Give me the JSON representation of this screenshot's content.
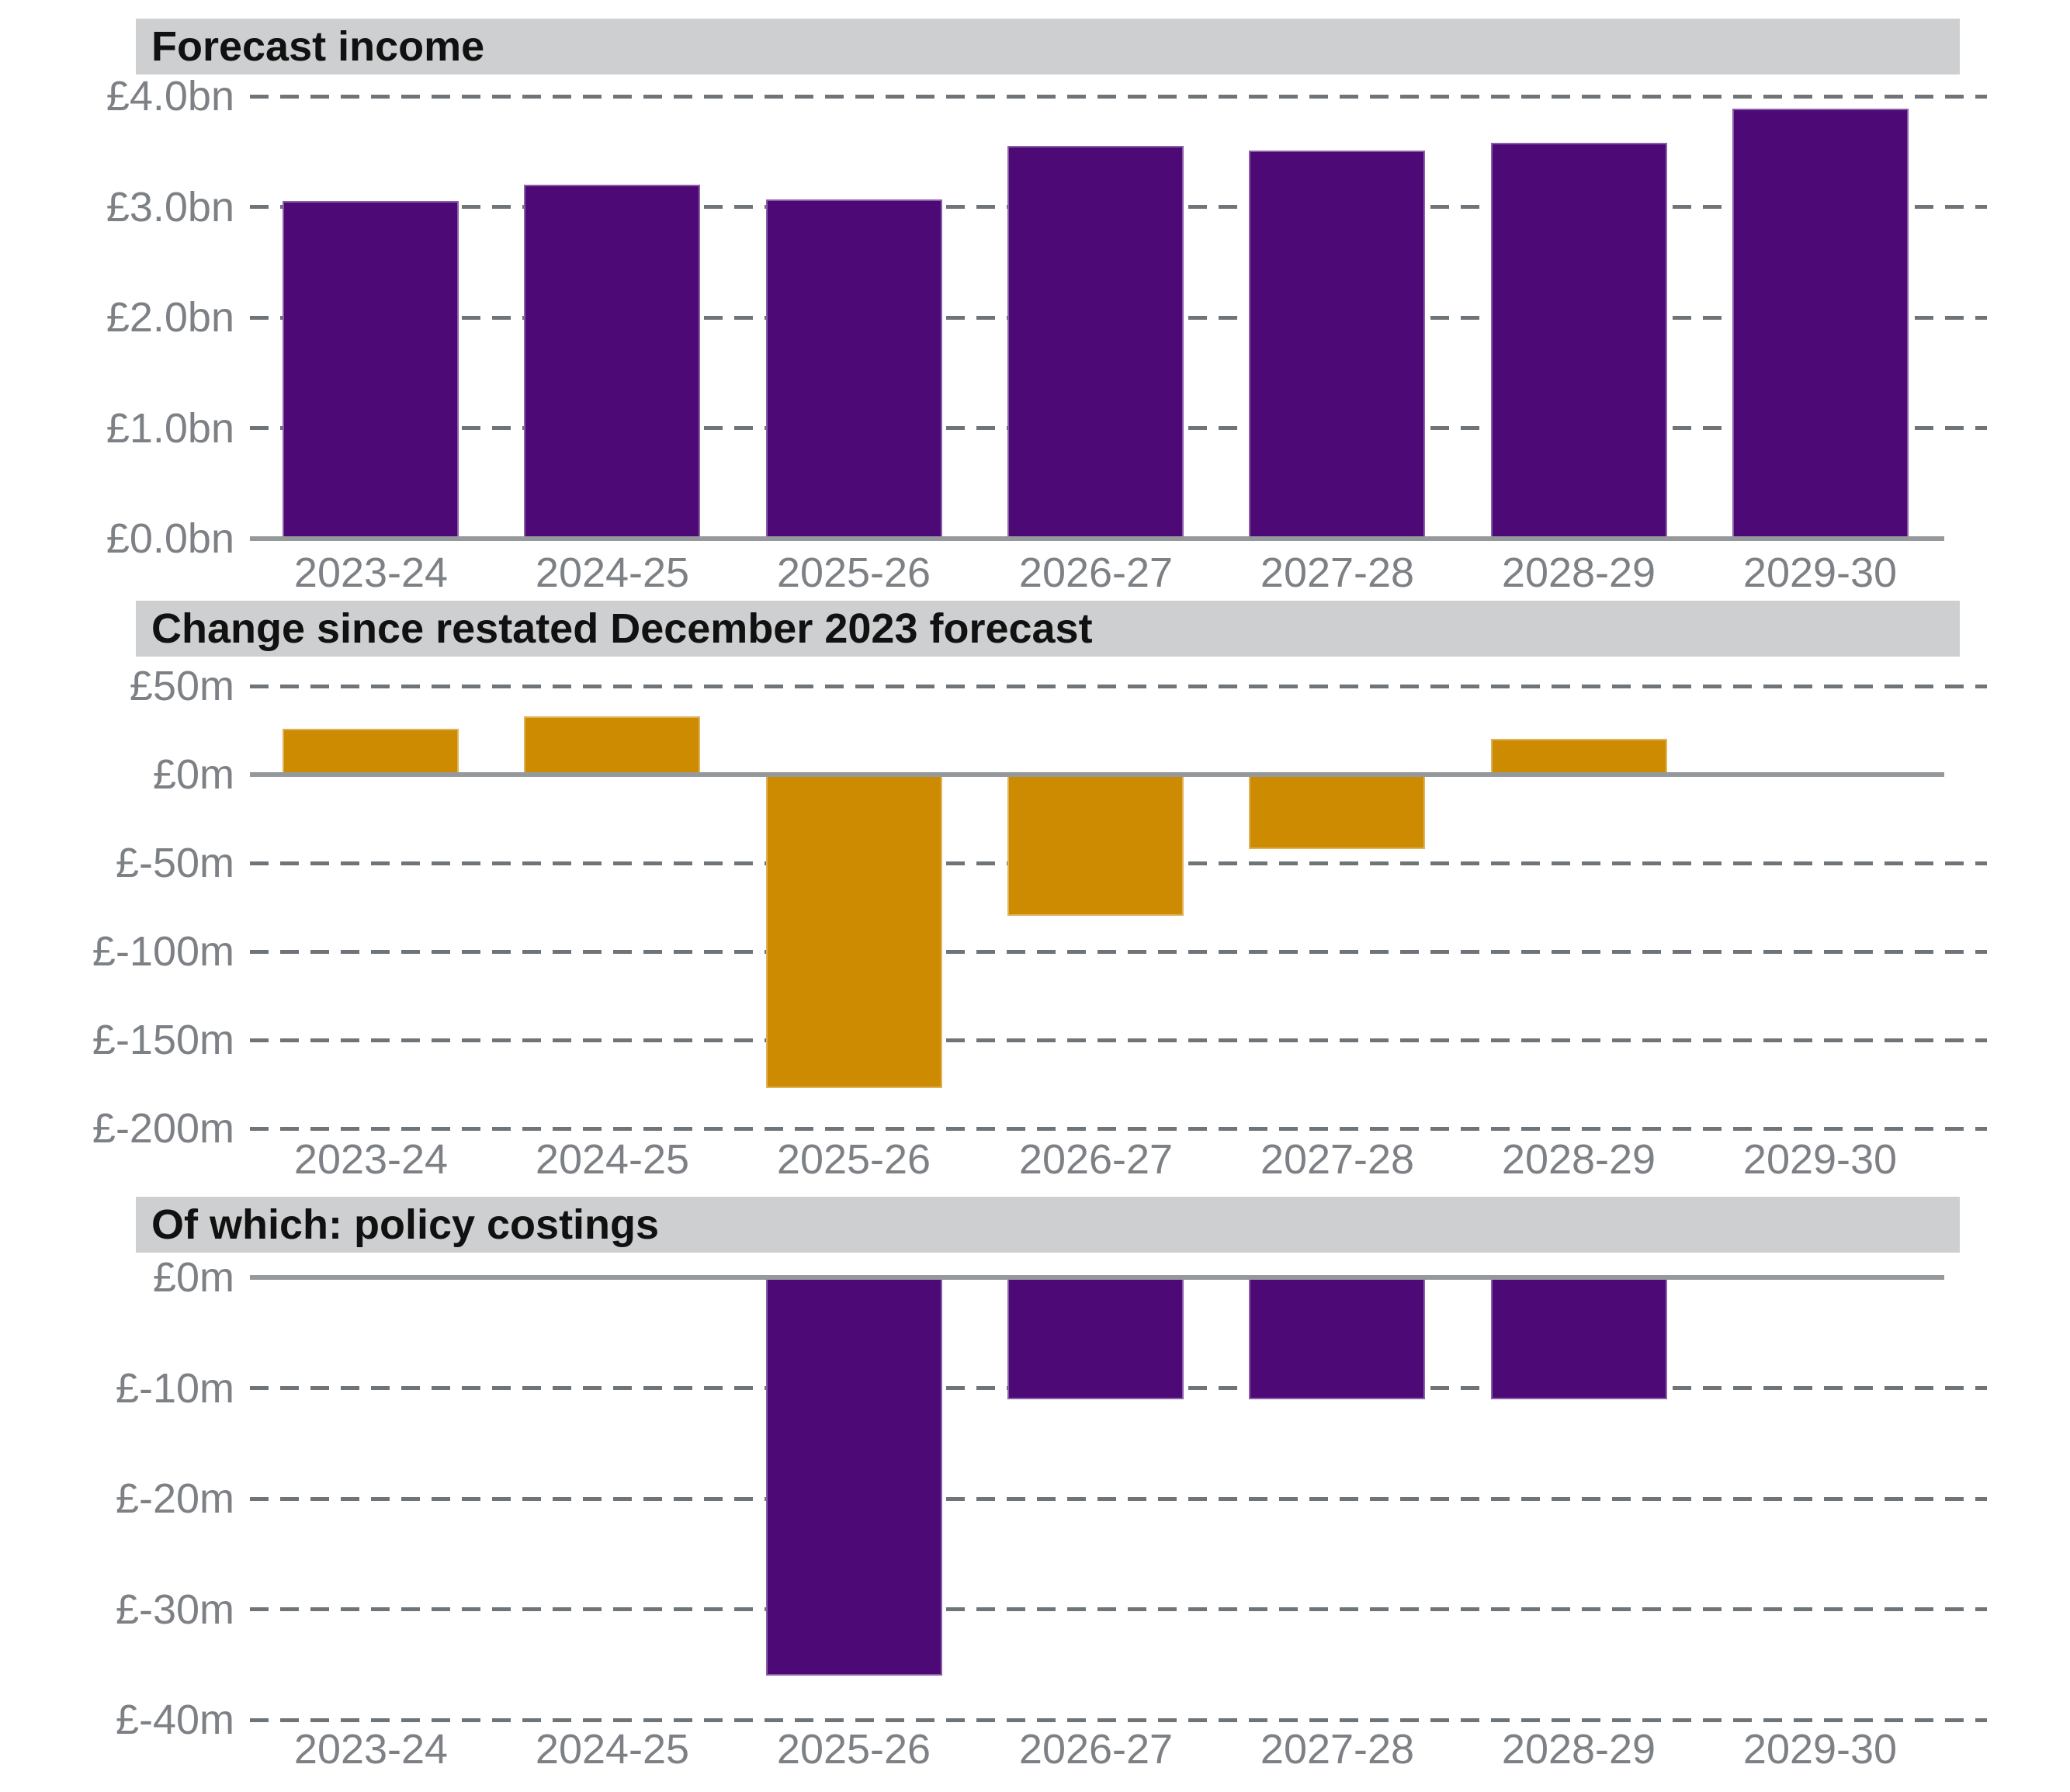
{
  "page": {
    "background": "#ffffff"
  },
  "style": {
    "bar_purple": "#4d0a77",
    "bar_gold": "#cc8b00",
    "banner_background": "#cdcfd0",
    "title_text_color": "#111111",
    "axis_label_color": "#7d8185",
    "gridline_color": "#6f7478",
    "zero_line_color": "#96999c"
  },
  "chart_data": [
    {
      "type": "bar",
      "title": "Forecast income",
      "categories": [
        "2023-24",
        "2024-25",
        "2025-26",
        "2026-27",
        "2027-28",
        "2028-29",
        "2029-30"
      ],
      "values": [
        3.05,
        3.2,
        3.07,
        3.55,
        3.51,
        3.58,
        3.89
      ],
      "unit": "£bn",
      "bar_color": "#4d0a77",
      "ylim": [
        0,
        4
      ],
      "baseline": 0,
      "grid": "dashed-horizontal",
      "legend": "none",
      "yticks": [
        {
          "v": 4,
          "label": "£4.0bn"
        },
        {
          "v": 3,
          "label": "£3.0bn"
        },
        {
          "v": 2,
          "label": "£2.0bn"
        },
        {
          "v": 1,
          "label": "£1.0bn"
        },
        {
          "v": 0,
          "label": "£0.0bn"
        }
      ]
    },
    {
      "type": "bar",
      "title": "Change since restated December 2023 forecast",
      "categories": [
        "2023-24",
        "2024-25",
        "2025-26",
        "2026-27",
        "2027-28",
        "2028-29",
        "2029-30"
      ],
      "values": [
        26,
        33,
        -177,
        -80,
        -42,
        20,
        0
      ],
      "unit": "£m",
      "bar_color": "#cc8b00",
      "ylim": [
        -200,
        50
      ],
      "baseline": 0,
      "grid": "dashed-horizontal",
      "legend": "none",
      "yticks": [
        {
          "v": 50,
          "label": "£50m"
        },
        {
          "v": 0,
          "label": "£0m"
        },
        {
          "v": -50,
          "label": "£-50m"
        },
        {
          "v": -100,
          "label": "£-100m"
        },
        {
          "v": -150,
          "label": "£-150m"
        },
        {
          "v": -200,
          "label": "£-200m"
        }
      ]
    },
    {
      "type": "bar",
      "title": "Of which: policy costings",
      "categories": [
        "2023-24",
        "2024-25",
        "2025-26",
        "2026-27",
        "2027-28",
        "2028-29",
        "2029-30"
      ],
      "values": [
        0,
        0,
        -36,
        -11,
        -11,
        -11,
        0
      ],
      "unit": "£m",
      "bar_color": "#4d0a77",
      "ylim": [
        -40,
        0
      ],
      "baseline": 0,
      "grid": "dashed-horizontal",
      "legend": "none",
      "yticks": [
        {
          "v": 0,
          "label": "£0m"
        },
        {
          "v": -10,
          "label": "£-10m"
        },
        {
          "v": -20,
          "label": "£-20m"
        },
        {
          "v": -30,
          "label": "£-30m"
        },
        {
          "v": -40,
          "label": "£-40m"
        }
      ]
    }
  ]
}
